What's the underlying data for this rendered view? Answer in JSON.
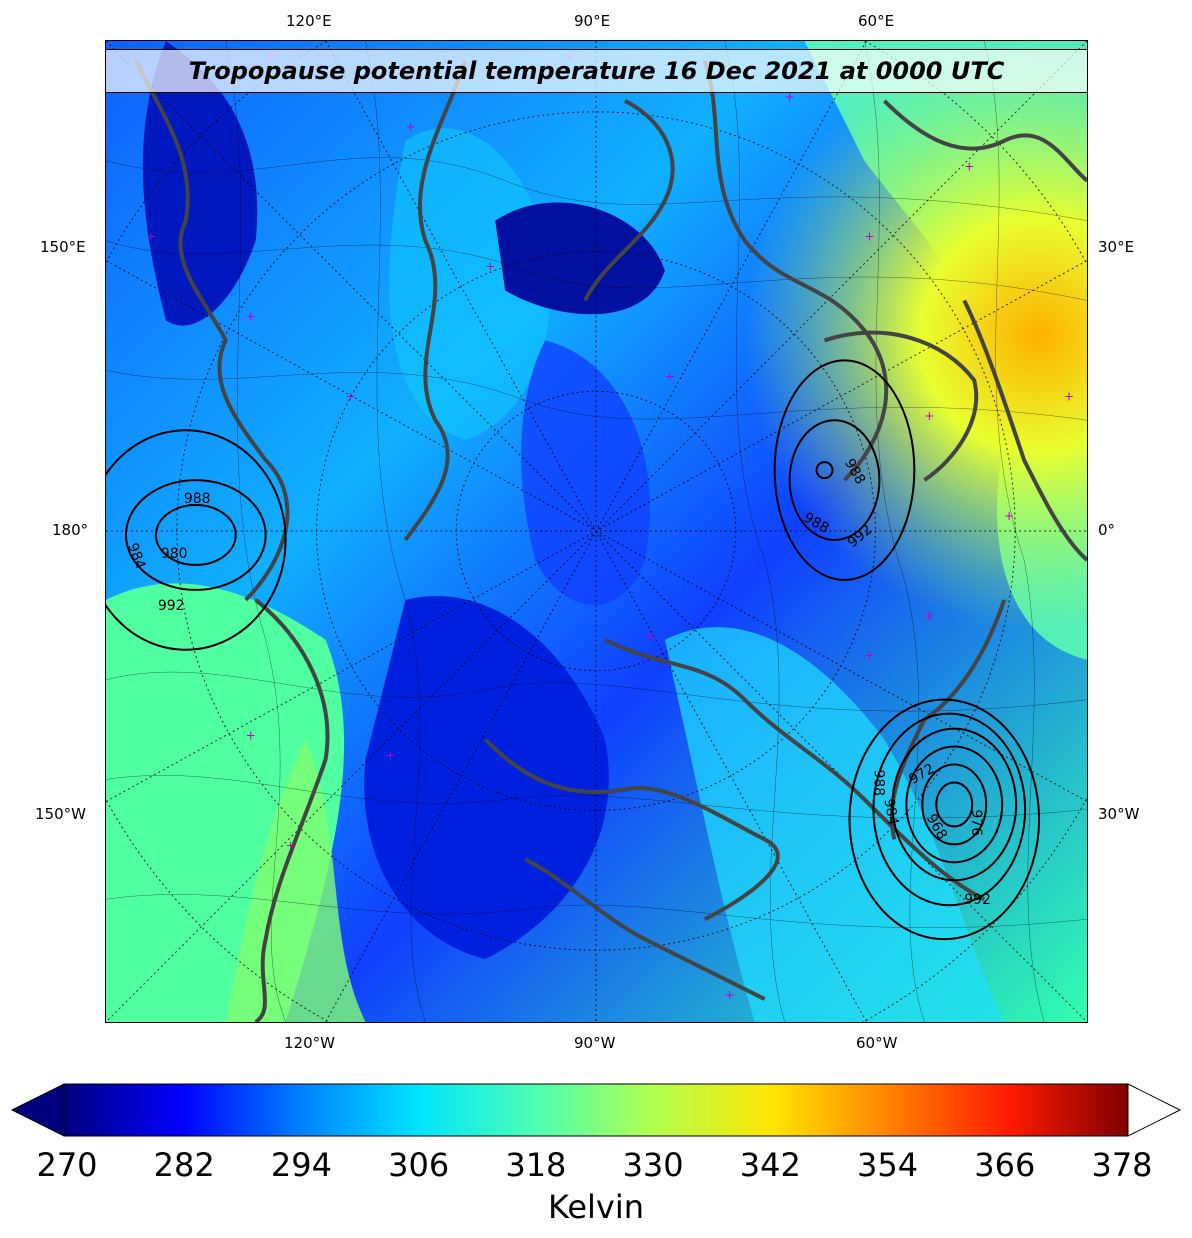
{
  "title": "Tropopause potential temperature 16 Dec 2021 at 0000 UTC",
  "axes": {
    "top": [
      "120°E",
      "90°E",
      "60°E"
    ],
    "bottom": [
      "120°W",
      "90°W",
      "60°W"
    ],
    "left": [
      "150°E",
      "180°",
      "150°W"
    ],
    "right": [
      "30°E",
      "0°",
      "30°W"
    ]
  },
  "pressure_labels": [
    "988",
    "984",
    "980",
    "992",
    "988",
    "988",
    "992",
    "972",
    "968",
    "984",
    "988",
    "976",
    "992"
  ],
  "colorbar": {
    "ticks": [
      "270",
      "282",
      "294",
      "306",
      "318",
      "330",
      "342",
      "354",
      "366",
      "378"
    ],
    "label": "Kelvin",
    "colors": [
      "#00007f",
      "#0000ff",
      "#0080ff",
      "#00e5ff",
      "#4dffb2",
      "#b2ff4d",
      "#ffe500",
      "#ff8000",
      "#ff1a00",
      "#7f0000"
    ]
  }
}
